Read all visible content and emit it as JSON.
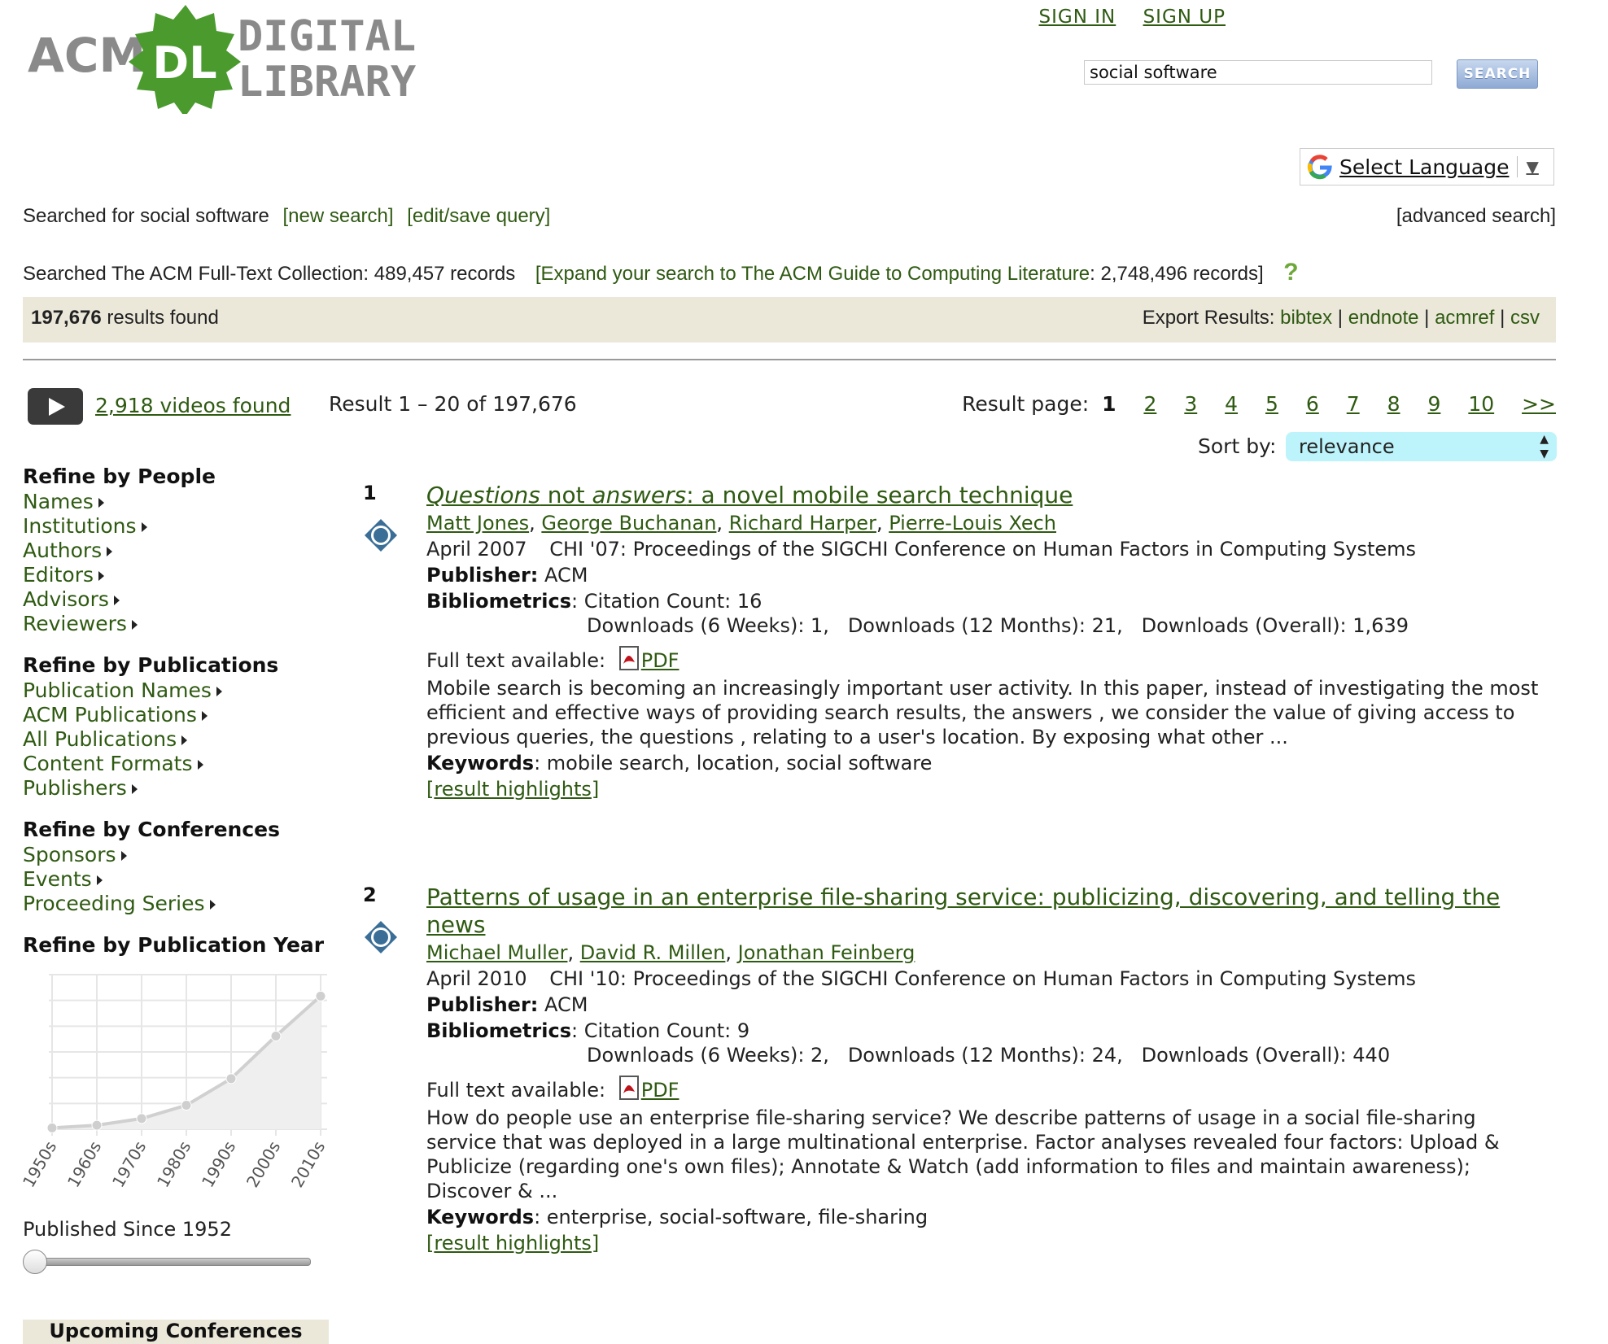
{
  "header": {
    "logo_left": "ACM",
    "logo_badge": "DL",
    "logo_right_top": "DIGITAL",
    "logo_right_bottom": "LIBRARY",
    "sign_in": "SIGN IN",
    "sign_up": "SIGN UP",
    "search_value": "social software",
    "search_button": "SEARCH",
    "language_label": "Select Language",
    "language_arrow": "▼"
  },
  "query": {
    "searched_for": "Searched for social software",
    "new_search": "[new search]",
    "edit_save": "[edit/save query]",
    "advanced": "[advanced search]",
    "collection_text": "Searched The ACM Full-Text Collection: 489,457 records",
    "expand_link": "[Expand your search to The ACM Guide to Computing Literature",
    "expand_tail": ": 2,748,496 records]",
    "help": "?"
  },
  "results_bar": {
    "count": "197,676",
    "count_suffix": " results found",
    "export_label": "Export Results:",
    "export_links": [
      "bibtex",
      "endnote",
      "acmref",
      "csv"
    ]
  },
  "listing": {
    "videos": "2,918 videos found",
    "range": "Result 1 – 20 of 197,676",
    "page_label": "Result page:",
    "current_page": "1",
    "pages": [
      "2",
      "3",
      "4",
      "5",
      "6",
      "7",
      "8",
      "9",
      "10",
      ">>"
    ],
    "sort_label": "Sort by:",
    "sort_value": "relevance"
  },
  "sidebar": {
    "people_title": "Refine by People",
    "people_items": [
      "Names",
      "Institutions",
      "Authors",
      "Editors",
      "Advisors",
      "Reviewers"
    ],
    "pubs_title": "Refine by Publications",
    "pubs_items": [
      "Publication Names",
      "ACM Publications",
      "All Publications",
      "Content Formats",
      "Publishers"
    ],
    "conf_title": "Refine by Conferences",
    "conf_items": [
      "Sponsors",
      "Events",
      "Proceeding Series"
    ],
    "year_title": "Refine by Publication Year",
    "published_since": "Published Since 1952",
    "upcoming": "Upcoming Conferences"
  },
  "chart_data": {
    "type": "area",
    "categories": [
      "1950s",
      "1960s",
      "1970s",
      "1980s",
      "1990s",
      "2000s",
      "2010s"
    ],
    "values": [
      1,
      3,
      8,
      18,
      38,
      70,
      100
    ],
    "ylim": [
      0,
      110
    ],
    "grid": true
  },
  "results": [
    {
      "num": "1",
      "title_q": "Questions",
      "title_mid1": " not ",
      "title_a": "answers",
      "title_rest": ": a novel mobile search technique",
      "authors": [
        "Matt Jones",
        "George Buchanan",
        "Richard Harper",
        "Pierre-Louis Xech"
      ],
      "date": "April 2007",
      "venue": "CHI '07: Proceedings of the SIGCHI Conference on Human Factors in Computing Systems",
      "publisher_label": "Publisher:",
      "publisher": "ACM",
      "biblio_label": "Bibliometrics",
      "citation": ": Citation Count: 16",
      "downloads": "Downloads (6 Weeks): 1,   Downloads (12 Months): 21,   Downloads (Overall): 1,639",
      "fulltext_label": "Full text available:",
      "pdf": "PDF",
      "abstract": "Mobile search is becoming an increasingly important user activity. In this paper, instead of investigating the most efficient and effective ways of providing search results, the answers , we consider the value of giving access to previous queries, the questions , relating to a user's location. By exposing what other ...",
      "keywords_label": "Keywords",
      "keywords": ": mobile search, location, social software",
      "highlights": "result highlights"
    },
    {
      "num": "2",
      "title": "Patterns of usage in an enterprise file-sharing service: publicizing, discovering, and telling the news",
      "authors": [
        "Michael Muller",
        "David R. Millen",
        "Jonathan Feinberg"
      ],
      "date": "April 2010",
      "venue": "CHI '10: Proceedings of the SIGCHI Conference on Human Factors in Computing Systems",
      "publisher_label": "Publisher:",
      "publisher": "ACM",
      "biblio_label": "Bibliometrics",
      "citation": ": Citation Count: 9",
      "downloads": "Downloads (6 Weeks): 2,   Downloads (12 Months): 24,   Downloads (Overall): 440",
      "fulltext_label": "Full text available:",
      "pdf": "PDF",
      "abstract": "How do people use an enterprise file-sharing service? We describe patterns of usage in a social file-sharing service that was deployed in a large multinational enterprise. Factor analyses revealed four factors: Upload & Publicize (regarding one's own files); Annotate & Watch (add information to files and maintain awareness); Discover & ...",
      "keywords_label": "Keywords",
      "keywords": ": enterprise, social-software, file-sharing",
      "highlights": "result highlights"
    }
  ],
  "colors": {
    "link": "#2f5a12",
    "bar_bg": "#ebe8da",
    "sort_bg": "#bdf4fb",
    "logo_green": "#4a9a2e",
    "logo_gray": "#8a8a8a"
  }
}
